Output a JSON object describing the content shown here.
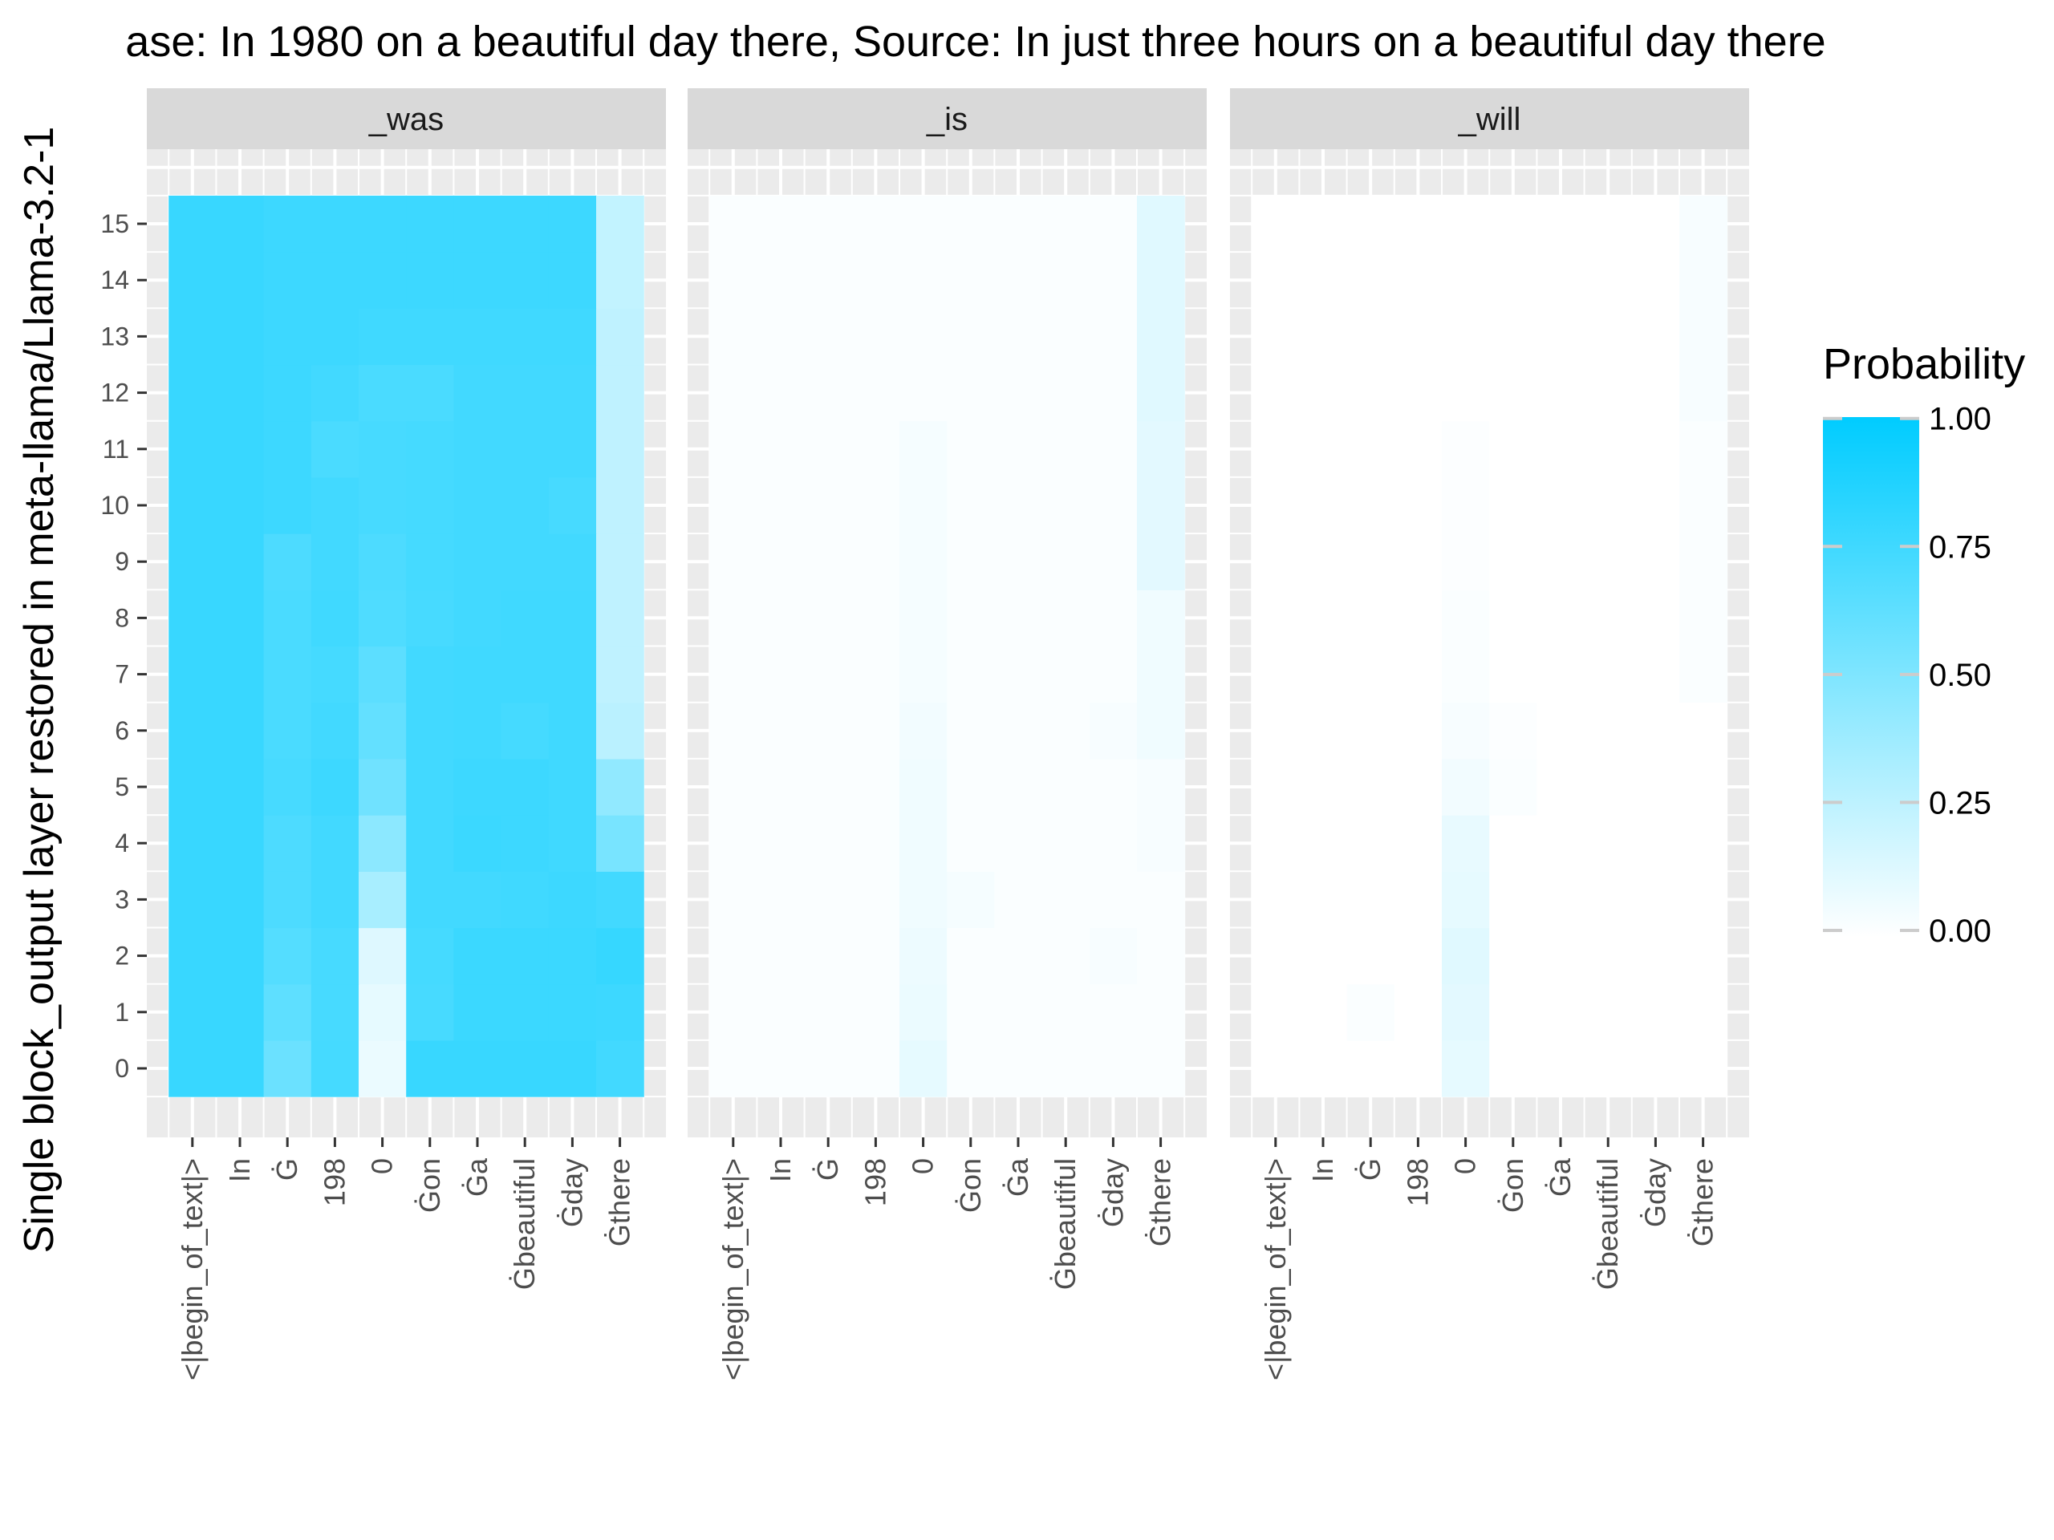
{
  "chart_data": {
    "type": "heatmap",
    "title": "ase: In 1980 on a beautiful day there, Source: In just three hours on a beautiful day there",
    "ylabel": "Single block_output layer restored in meta-llama/Llama-3.2-1",
    "xlabel": "",
    "x_categories": [
      "<|begin_of_text|>",
      "In",
      "Ġ",
      "198",
      "0",
      "Ġon",
      "Ġa",
      "Ġbeautiful",
      "Ġday",
      "Ġthere"
    ],
    "y_categories": [
      0,
      1,
      2,
      3,
      4,
      5,
      6,
      7,
      8,
      9,
      10,
      11,
      12,
      13,
      14,
      15
    ],
    "legend": {
      "title": "Probability",
      "breaks": [
        "1.00",
        "0.75",
        "0.50",
        "0.25",
        "0.00"
      ],
      "low_color": "#ffffff",
      "high_color": "#00ccff",
      "placement": "right"
    },
    "colors": {
      "low": "#ffffff",
      "high": "#00ccff",
      "panel_bg": "#ebebeb",
      "strip_bg": "#d9d9d9",
      "grid": "#ffffff"
    },
    "panels": [
      {
        "label": "_was",
        "values": [
          [
            0.78,
            0.78,
            0.58,
            0.73,
            0.08,
            0.78,
            0.78,
            0.78,
            0.78,
            0.74
          ],
          [
            0.78,
            0.78,
            0.63,
            0.72,
            0.1,
            0.72,
            0.77,
            0.77,
            0.77,
            0.76
          ],
          [
            0.78,
            0.78,
            0.67,
            0.72,
            0.13,
            0.73,
            0.77,
            0.77,
            0.77,
            0.79
          ],
          [
            0.78,
            0.78,
            0.7,
            0.74,
            0.34,
            0.74,
            0.74,
            0.75,
            0.76,
            0.74
          ],
          [
            0.78,
            0.78,
            0.7,
            0.74,
            0.45,
            0.74,
            0.77,
            0.76,
            0.75,
            0.53
          ],
          [
            0.78,
            0.78,
            0.72,
            0.76,
            0.56,
            0.74,
            0.76,
            0.76,
            0.75,
            0.43
          ],
          [
            0.78,
            0.78,
            0.71,
            0.74,
            0.61,
            0.74,
            0.75,
            0.73,
            0.75,
            0.27
          ],
          [
            0.78,
            0.78,
            0.71,
            0.73,
            0.64,
            0.74,
            0.75,
            0.75,
            0.75,
            0.25
          ],
          [
            0.78,
            0.78,
            0.71,
            0.75,
            0.69,
            0.72,
            0.74,
            0.75,
            0.75,
            0.25
          ],
          [
            0.78,
            0.78,
            0.7,
            0.74,
            0.7,
            0.73,
            0.74,
            0.74,
            0.74,
            0.25
          ],
          [
            0.78,
            0.78,
            0.76,
            0.74,
            0.72,
            0.73,
            0.74,
            0.74,
            0.72,
            0.25
          ],
          [
            0.78,
            0.78,
            0.76,
            0.71,
            0.72,
            0.73,
            0.74,
            0.74,
            0.74,
            0.25
          ],
          [
            0.78,
            0.78,
            0.76,
            0.74,
            0.71,
            0.71,
            0.74,
            0.74,
            0.74,
            0.25
          ],
          [
            0.78,
            0.78,
            0.76,
            0.76,
            0.75,
            0.75,
            0.75,
            0.75,
            0.75,
            0.25
          ],
          [
            0.78,
            0.78,
            0.76,
            0.76,
            0.76,
            0.76,
            0.76,
            0.76,
            0.76,
            0.24
          ],
          [
            0.78,
            0.78,
            0.76,
            0.76,
            0.76,
            0.76,
            0.76,
            0.76,
            0.76,
            0.24
          ]
        ]
      },
      {
        "label": "_is",
        "values": [
          [
            0.02,
            0.02,
            0.02,
            0.02,
            0.1,
            0.02,
            0.02,
            0.02,
            0.02,
            0.02
          ],
          [
            0.02,
            0.02,
            0.02,
            0.02,
            0.08,
            0.02,
            0.02,
            0.02,
            0.02,
            0.02
          ],
          [
            0.02,
            0.02,
            0.02,
            0.02,
            0.07,
            0.02,
            0.02,
            0.02,
            0.03,
            0.02
          ],
          [
            0.02,
            0.02,
            0.02,
            0.02,
            0.06,
            0.04,
            0.02,
            0.02,
            0.02,
            0.02
          ],
          [
            0.02,
            0.02,
            0.02,
            0.02,
            0.06,
            0.02,
            0.02,
            0.02,
            0.02,
            0.03
          ],
          [
            0.02,
            0.02,
            0.02,
            0.02,
            0.06,
            0.02,
            0.02,
            0.02,
            0.02,
            0.03
          ],
          [
            0.02,
            0.02,
            0.02,
            0.02,
            0.05,
            0.02,
            0.02,
            0.02,
            0.03,
            0.06
          ],
          [
            0.02,
            0.02,
            0.02,
            0.02,
            0.04,
            0.02,
            0.02,
            0.02,
            0.02,
            0.06
          ],
          [
            0.02,
            0.02,
            0.02,
            0.02,
            0.04,
            0.02,
            0.02,
            0.02,
            0.02,
            0.06
          ],
          [
            0.02,
            0.02,
            0.02,
            0.02,
            0.04,
            0.02,
            0.02,
            0.02,
            0.02,
            0.11
          ],
          [
            0.02,
            0.02,
            0.02,
            0.02,
            0.04,
            0.02,
            0.02,
            0.02,
            0.02,
            0.11
          ],
          [
            0.02,
            0.02,
            0.02,
            0.02,
            0.04,
            0.02,
            0.02,
            0.02,
            0.02,
            0.11
          ],
          [
            0.02,
            0.02,
            0.02,
            0.02,
            0.02,
            0.02,
            0.02,
            0.02,
            0.02,
            0.12
          ],
          [
            0.02,
            0.02,
            0.02,
            0.02,
            0.02,
            0.02,
            0.02,
            0.02,
            0.02,
            0.12
          ],
          [
            0.02,
            0.02,
            0.02,
            0.02,
            0.02,
            0.02,
            0.02,
            0.02,
            0.02,
            0.12
          ],
          [
            0.02,
            0.02,
            0.02,
            0.02,
            0.02,
            0.02,
            0.02,
            0.02,
            0.02,
            0.12
          ]
        ]
      },
      {
        "label": "_will",
        "values": [
          [
            0.0,
            0.0,
            0.0,
            0.0,
            0.1,
            0.0,
            0.0,
            0.0,
            0.0,
            0.0
          ],
          [
            0.0,
            0.0,
            0.02,
            0.0,
            0.11,
            0.0,
            0.0,
            0.0,
            0.0,
            0.0
          ],
          [
            0.0,
            0.0,
            0.0,
            0.0,
            0.12,
            0.0,
            0.0,
            0.0,
            0.0,
            0.0
          ],
          [
            0.0,
            0.0,
            0.0,
            0.0,
            0.1,
            0.0,
            0.0,
            0.0,
            0.0,
            0.0
          ],
          [
            0.0,
            0.0,
            0.0,
            0.0,
            0.09,
            0.0,
            0.0,
            0.0,
            0.0,
            0.0
          ],
          [
            0.0,
            0.0,
            0.0,
            0.0,
            0.05,
            0.02,
            0.0,
            0.0,
            0.0,
            0.0
          ],
          [
            0.0,
            0.0,
            0.0,
            0.0,
            0.03,
            0.01,
            0.0,
            0.0,
            0.0,
            0.0
          ],
          [
            0.0,
            0.0,
            0.0,
            0.0,
            0.02,
            0.0,
            0.0,
            0.0,
            0.0,
            0.02
          ],
          [
            0.0,
            0.0,
            0.0,
            0.0,
            0.02,
            0.0,
            0.0,
            0.0,
            0.0,
            0.02
          ],
          [
            0.0,
            0.0,
            0.0,
            0.0,
            0.01,
            0.0,
            0.0,
            0.0,
            0.0,
            0.02
          ],
          [
            0.0,
            0.0,
            0.0,
            0.0,
            0.01,
            0.0,
            0.0,
            0.0,
            0.0,
            0.02
          ],
          [
            0.0,
            0.0,
            0.0,
            0.0,
            0.01,
            0.0,
            0.0,
            0.0,
            0.0,
            0.02
          ],
          [
            0.0,
            0.0,
            0.0,
            0.0,
            0.0,
            0.0,
            0.0,
            0.0,
            0.0,
            0.03
          ],
          [
            0.0,
            0.0,
            0.0,
            0.0,
            0.0,
            0.0,
            0.0,
            0.0,
            0.0,
            0.03
          ],
          [
            0.0,
            0.0,
            0.0,
            0.0,
            0.0,
            0.0,
            0.0,
            0.0,
            0.0,
            0.03
          ],
          [
            0.0,
            0.0,
            0.0,
            0.0,
            0.0,
            0.0,
            0.0,
            0.0,
            0.0,
            0.03
          ]
        ]
      }
    ]
  }
}
